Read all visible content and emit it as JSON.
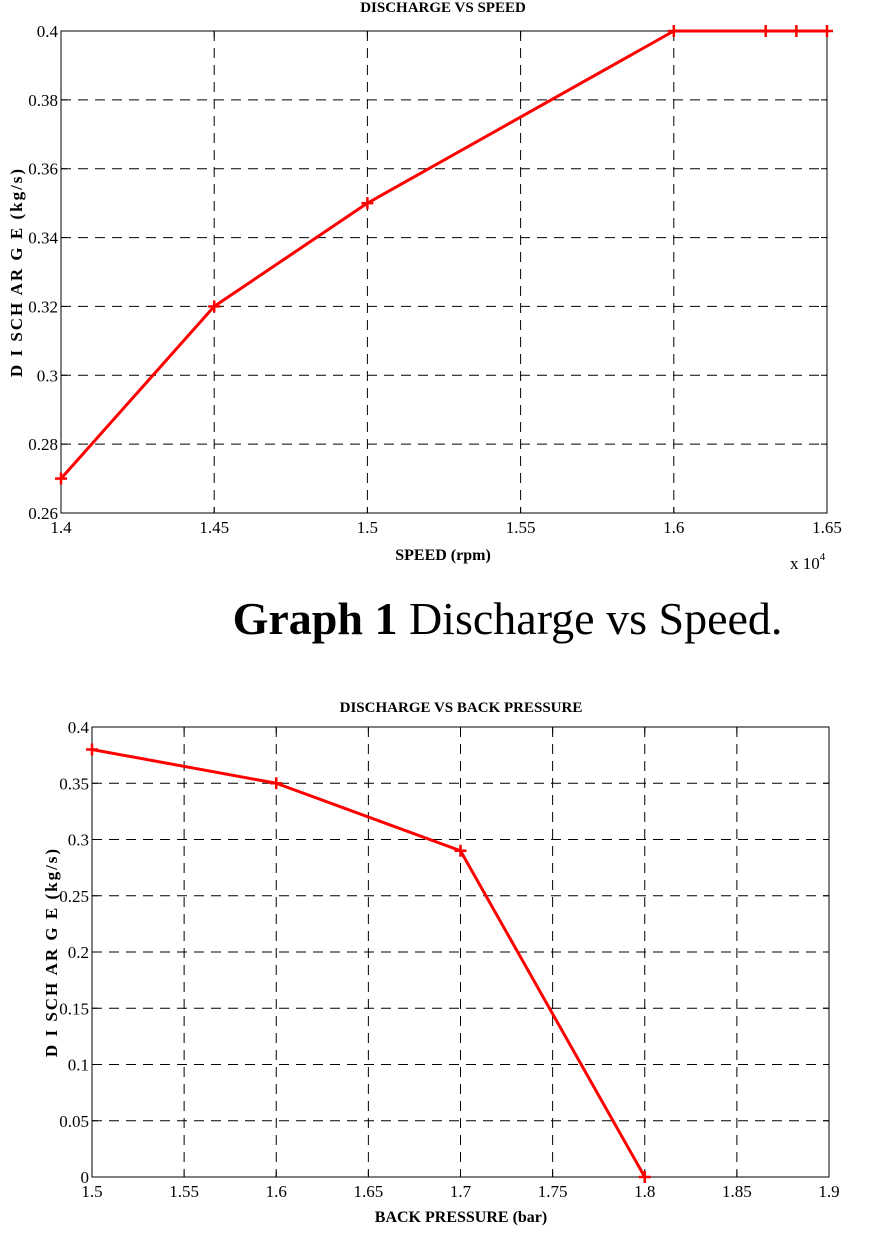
{
  "chart_data": [
    {
      "type": "line",
      "title": "DISCHARGE VS SPEED",
      "xlabel": "SPEED (rpm)",
      "ylabel": "D I SCH AR G E  (kg/s)",
      "x_multiplier": "x 10",
      "x_multiplier_exp": "4",
      "xlim": [
        1.4,
        1.65
      ],
      "ylim": [
        0.26,
        0.4
      ],
      "xticks": [
        "1.4",
        "1.45",
        "1.5",
        "1.55",
        "1.6",
        "1.65"
      ],
      "yticks": [
        "0.26",
        "0.28",
        "0.3",
        "0.32",
        "0.34",
        "0.36",
        "0.38",
        "0.4"
      ],
      "grid": true,
      "series": [
        {
          "color": "#ff0000",
          "marker": "plus",
          "x": [
            1.4,
            1.45,
            1.5,
            1.6,
            1.63,
            1.64,
            1.65
          ],
          "y": [
            0.27,
            0.32,
            0.35,
            0.4,
            0.4,
            0.4,
            0.4
          ]
        }
      ]
    },
    {
      "type": "line",
      "title": "DISCHARGE VS BACK PRESSURE",
      "xlabel": "BACK PRESSURE (bar)",
      "ylabel": "D I SCH AR G E  (kg/s)",
      "xlim": [
        1.5,
        1.9
      ],
      "ylim": [
        0,
        0.4
      ],
      "xticks": [
        "1.5",
        "1.55",
        "1.6",
        "1.65",
        "1.7",
        "1.75",
        "1.8",
        "1.85",
        "1.9"
      ],
      "yticks": [
        "0",
        "0.05",
        "0.1",
        "0.15",
        "0.2",
        "0.25",
        "0.3",
        "0.35",
        "0.4"
      ],
      "grid": true,
      "series": [
        {
          "color": "#ff0000",
          "marker": "plus",
          "x": [
            1.5,
            1.6,
            1.7,
            1.8
          ],
          "y": [
            0.38,
            0.35,
            0.29,
            0.0
          ]
        }
      ]
    }
  ],
  "caption": {
    "label": "Graph 1",
    "text": " Discharge vs Speed."
  }
}
